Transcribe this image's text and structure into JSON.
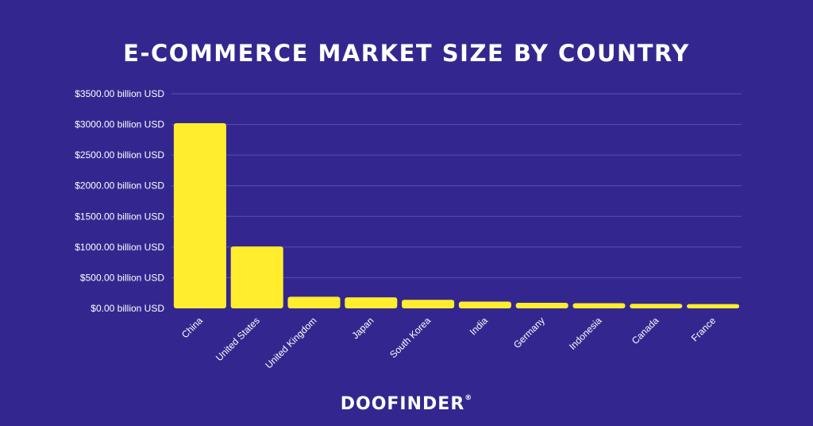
{
  "title": "E-COMMERCE MARKET SIZE BY COUNTRY",
  "logo": {
    "text": "DOOFINDER",
    "mark": "®"
  },
  "colors": {
    "background": "#33278f",
    "bar": "#ffed2e",
    "grid": "#5a50a8",
    "text": "#ffffff"
  },
  "chart_data": {
    "type": "bar",
    "title": "E-COMMERCE MARKET SIZE BY COUNTRY",
    "xlabel": "",
    "ylabel": "",
    "ylim": [
      0,
      3500
    ],
    "grid": true,
    "yticks": [
      {
        "value": 0,
        "label": "$0.00 billion USD"
      },
      {
        "value": 500,
        "label": "$500.00 billion USD"
      },
      {
        "value": 1000,
        "label": "$1000.00 billion USD"
      },
      {
        "value": 1500,
        "label": "$1500.00 billion USD"
      },
      {
        "value": 2000,
        "label": "$2000.00 billion USD"
      },
      {
        "value": 2500,
        "label": "$2500.00 billion USD"
      },
      {
        "value": 3000,
        "label": "$3000.00 billion USD"
      },
      {
        "value": 3500,
        "label": "$3500.00 billion USD"
      }
    ],
    "categories": [
      "China",
      "United States",
      "United Kingdom",
      "Japan",
      "South Korea",
      "India",
      "Germany",
      "Indonesia",
      "Canada",
      "France"
    ],
    "values": [
      3020,
      1010,
      190,
      180,
      140,
      110,
      90,
      85,
      75,
      70
    ]
  }
}
